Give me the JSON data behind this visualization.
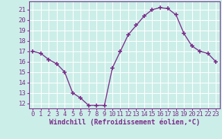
{
  "x": [
    0,
    1,
    2,
    3,
    4,
    5,
    6,
    7,
    8,
    9,
    10,
    11,
    12,
    13,
    14,
    15,
    16,
    17,
    18,
    19,
    20,
    21,
    22,
    23
  ],
  "y": [
    17.0,
    16.8,
    16.2,
    15.8,
    15.0,
    13.0,
    12.5,
    11.8,
    11.8,
    11.8,
    15.4,
    17.0,
    18.6,
    19.5,
    20.4,
    21.0,
    21.2,
    21.1,
    20.5,
    18.7,
    17.5,
    17.0,
    16.8,
    16.0
  ],
  "line_color": "#7b2d8b",
  "marker": "+",
  "marker_color": "#7b2d8b",
  "bg_color": "#cceee8",
  "grid_color": "#ffffff",
  "xlabel": "Windchill (Refroidissement éolien,°C)",
  "xlabel_color": "#7b2d8b",
  "tick_color": "#7b2d8b",
  "spine_color": "#7b2d8b",
  "ylim": [
    11.5,
    21.8
  ],
  "xlim": [
    -0.5,
    23.5
  ],
  "yticks": [
    12,
    13,
    14,
    15,
    16,
    17,
    18,
    19,
    20,
    21
  ],
  "xticks": [
    0,
    1,
    2,
    3,
    4,
    5,
    6,
    7,
    8,
    9,
    10,
    11,
    12,
    13,
    14,
    15,
    16,
    17,
    18,
    19,
    20,
    21,
    22,
    23
  ],
  "linewidth": 1.0,
  "markersize": 4,
  "tick_fontsize": 6.5,
  "xlabel_fontsize": 7.0
}
